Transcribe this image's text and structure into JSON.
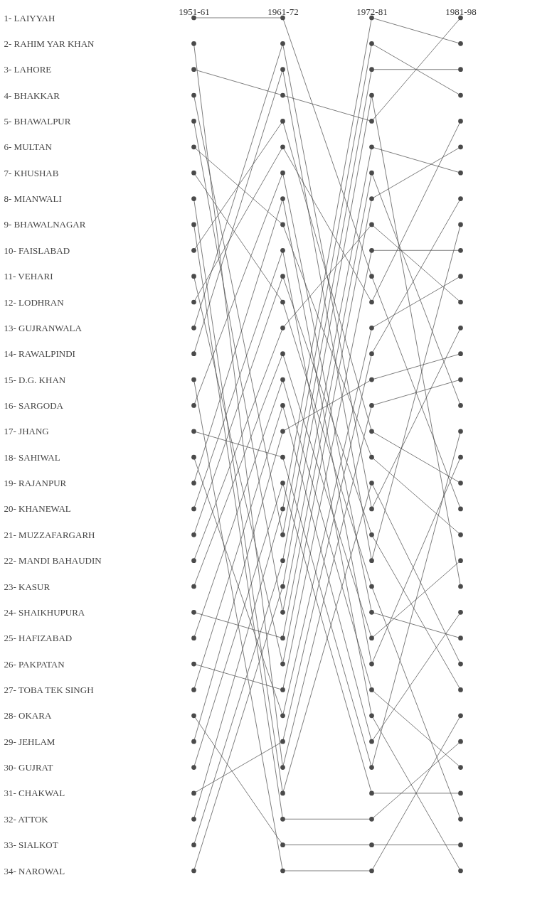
{
  "chart_data": {
    "type": "line",
    "categories": [
      "1951-61",
      "1961-72",
      "1972-81",
      "1981-98"
    ],
    "ylim": [
      34,
      1
    ],
    "yticks": [
      {
        "value": 1,
        "label": "1- LAIYYAH"
      },
      {
        "value": 2,
        "label": "2- RAHIM YAR KHAN"
      },
      {
        "value": 3,
        "label": "3- LAHORE"
      },
      {
        "value": 4,
        "label": "4- BHAKKAR"
      },
      {
        "value": 5,
        "label": "5- BHAWALPUR"
      },
      {
        "value": 6,
        "label": "6- MULTAN"
      },
      {
        "value": 7,
        "label": "7- KHUSHAB"
      },
      {
        "value": 8,
        "label": "8- MIANWALI"
      },
      {
        "value": 9,
        "label": "9- BHAWALNAGAR"
      },
      {
        "value": 10,
        "label": "10- FAISLABAD"
      },
      {
        "value": 11,
        "label": "11- VEHARI"
      },
      {
        "value": 12,
        "label": "12- LODHRAN"
      },
      {
        "value": 13,
        "label": "13- GUJRANWALA"
      },
      {
        "value": 14,
        "label": "14- RAWALPINDI"
      },
      {
        "value": 15,
        "label": "15- D.G. KHAN"
      },
      {
        "value": 16,
        "label": "16- SARGODA"
      },
      {
        "value": 17,
        "label": "17- JHANG"
      },
      {
        "value": 18,
        "label": "18- SAHIWAL"
      },
      {
        "value": 19,
        "label": "19- RAJANPUR"
      },
      {
        "value": 20,
        "label": "20- KHANEWAL"
      },
      {
        "value": 21,
        "label": "21- MUZZAFARGARH"
      },
      {
        "value": 22,
        "label": "22- MANDI BAHAUDIN"
      },
      {
        "value": 23,
        "label": "23- KASUR"
      },
      {
        "value": 24,
        "label": "24- SHAIKHUPURA"
      },
      {
        "value": 25,
        "label": "25- HAFIZABAD"
      },
      {
        "value": 26,
        "label": "26- PAKPATAN"
      },
      {
        "value": 27,
        "label": "27- TOBA TEK SINGH"
      },
      {
        "value": 28,
        "label": "28- OKARA"
      },
      {
        "value": 29,
        "label": "29- JEHLAM"
      },
      {
        "value": 30,
        "label": "30- GUJRAT"
      },
      {
        "value": 31,
        "label": "31- CHAKWAL"
      },
      {
        "value": 32,
        "label": "32- ATTOK"
      },
      {
        "value": 33,
        "label": "33- SIALKOT"
      },
      {
        "value": 34,
        "label": "34- NAROWAL"
      }
    ],
    "marker": "circle",
    "line_style": "solid",
    "grid": false,
    "legend": false,
    "series": [
      {
        "color": "#4a4a4a",
        "values": [
          1,
          1,
          11,
          20
        ]
      },
      {
        "color": "#4a4a4a",
        "values": [
          2,
          30,
          16,
          15
        ]
      },
      {
        "color": "#4a4a4a",
        "values": [
          3,
          4,
          5,
          1
        ]
      },
      {
        "color": "#4a4a4a",
        "values": [
          4,
          21,
          2,
          4
        ]
      },
      {
        "color": "#4a4a4a",
        "values": [
          5,
          24,
          6,
          7
        ]
      },
      {
        "color": "#4a4a4a",
        "values": [
          6,
          9,
          18,
          21
        ]
      },
      {
        "color": "#4a4a4a",
        "values": [
          7,
          12,
          23,
          32
        ]
      },
      {
        "color": "#4a4a4a",
        "values": [
          8,
          31,
          19,
          26
        ]
      },
      {
        "color": "#4a4a4a",
        "values": [
          9,
          32,
          32,
          29
        ]
      },
      {
        "color": "#4a4a4a",
        "values": [
          10,
          5,
          17,
          19
        ]
      },
      {
        "color": "#4a4a4a",
        "values": [
          11,
          26,
          8,
          6
        ]
      },
      {
        "color": "#4a4a4a",
        "values": [
          12,
          6,
          12,
          5
        ]
      },
      {
        "color": "#4a4a4a",
        "values": [
          13,
          2,
          20,
          13
        ]
      },
      {
        "color": "#4a4a4a",
        "values": [
          14,
          3,
          22,
          9
        ]
      },
      {
        "color": "#4a4a4a",
        "values": [
          15,
          34,
          34,
          28
        ]
      },
      {
        "color": "#4a4a4a",
        "values": [
          16,
          7,
          24,
          25
        ]
      },
      {
        "color": "#4a4a4a",
        "values": [
          17,
          18,
          30,
          17
        ]
      },
      {
        "color": "#4a4a4a",
        "values": [
          18,
          28,
          13,
          11
        ]
      },
      {
        "color": "#4a4a4a",
        "values": [
          19,
          8,
          26,
          18
        ]
      },
      {
        "color": "#4a4a4a",
        "values": [
          20,
          10,
          28,
          34
        ]
      },
      {
        "color": "#4a4a4a",
        "values": [
          21,
          11,
          21,
          27
        ]
      },
      {
        "color": "#4a4a4a",
        "values": [
          22,
          13,
          9,
          12
        ]
      },
      {
        "color": "#4a4a4a",
        "values": [
          23,
          14,
          25,
          22
        ]
      },
      {
        "color": "#4a4a4a",
        "values": [
          24,
          25,
          7,
          16
        ]
      },
      {
        "color": "#4a4a4a",
        "values": [
          25,
          15,
          27,
          30
        ]
      },
      {
        "color": "#4a4a4a",
        "values": [
          26,
          27,
          10,
          10
        ]
      },
      {
        "color": "#4a4a4a",
        "values": [
          27,
          16,
          29,
          24
        ]
      },
      {
        "color": "#4a4a4a",
        "values": [
          28,
          33,
          33,
          33
        ]
      },
      {
        "color": "#4a4a4a",
        "values": [
          29,
          17,
          15,
          14
        ]
      },
      {
        "color": "#4a4a4a",
        "values": [
          30,
          19,
          31,
          31
        ]
      },
      {
        "color": "#4a4a4a",
        "values": [
          31,
          29,
          14,
          8
        ]
      },
      {
        "color": "#4a4a4a",
        "values": [
          32,
          20,
          1,
          2
        ]
      },
      {
        "color": "#4a4a4a",
        "values": [
          33,
          22,
          3,
          3
        ]
      },
      {
        "color": "#4a4a4a",
        "values": [
          34,
          23,
          4,
          23
        ]
      }
    ]
  }
}
